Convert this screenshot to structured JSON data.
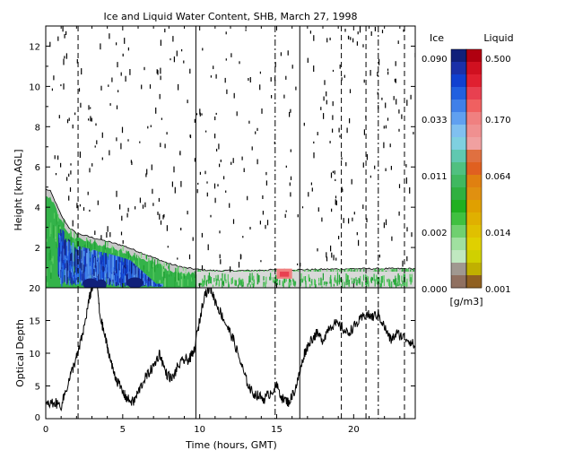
{
  "chart_data": [
    {
      "type": "heatmap",
      "title": "Ice and Liquid Water Content, SHB, March 27, 1998",
      "xlabel": "",
      "ylabel": "Height [km,AGL]",
      "xlim": [
        0,
        24
      ],
      "ylim": [
        0,
        13
      ],
      "xticks": [
        0,
        5,
        10,
        15,
        20
      ],
      "yticks": [
        2,
        4,
        6,
        8,
        10,
        12
      ],
      "cloud_top_km": [
        {
          "t": 0.0,
          "h": 4.9
        },
        {
          "t": 0.3,
          "h": 4.8
        },
        {
          "t": 0.6,
          "h": 4.3
        },
        {
          "t": 1.0,
          "h": 3.6
        },
        {
          "t": 1.5,
          "h": 3.0
        },
        {
          "t": 2.0,
          "h": 2.7
        },
        {
          "t": 3.0,
          "h": 2.5
        },
        {
          "t": 4.0,
          "h": 2.3
        },
        {
          "t": 5.0,
          "h": 2.1
        },
        {
          "t": 6.0,
          "h": 1.8
        },
        {
          "t": 7.0,
          "h": 1.5
        },
        {
          "t": 8.0,
          "h": 1.2
        },
        {
          "t": 9.0,
          "h": 1.0
        },
        {
          "t": 10.0,
          "h": 0.9
        },
        {
          "t": 11.0,
          "h": 0.85
        },
        {
          "t": 13.0,
          "h": 0.85
        },
        {
          "t": 15.0,
          "h": 0.9
        },
        {
          "t": 17.0,
          "h": 0.9
        },
        {
          "t": 20.0,
          "h": 0.95
        },
        {
          "t": 24.0,
          "h": 0.95
        }
      ],
      "vertical_markers": [
        {
          "t": 2.1,
          "style": "dashed"
        },
        {
          "t": 9.75,
          "style": "solid"
        },
        {
          "t": 14.9,
          "style": "dashdot"
        },
        {
          "t": 16.5,
          "style": "solid"
        },
        {
          "t": 19.2,
          "style": "dashed"
        },
        {
          "t": 20.8,
          "style": "dashed"
        },
        {
          "t": 21.6,
          "style": "dashdot"
        },
        {
          "t": 23.3,
          "style": "dashed"
        }
      ]
    },
    {
      "type": "line",
      "xlabel": "Time (hours, GMT)",
      "ylabel": "Optical Depth",
      "xlim": [
        0,
        24
      ],
      "ylim": [
        0,
        20
      ],
      "xticks": [
        0,
        5,
        10,
        15,
        20
      ],
      "yticks": [
        0,
        5,
        10,
        15,
        20
      ],
      "x": [
        0,
        0.5,
        1.0,
        1.4,
        1.8,
        2.1,
        2.5,
        2.8,
        3.0,
        3.3,
        3.5,
        3.8,
        4.0,
        4.3,
        4.6,
        5.0,
        5.3,
        5.7,
        6.0,
        6.4,
        6.7,
        7.0,
        7.4,
        7.8,
        8.2,
        8.6,
        9.0,
        9.3,
        9.6,
        10.0,
        10.3,
        10.7,
        11.0,
        11.4,
        11.8,
        12.2,
        12.6,
        13.0,
        13.4,
        13.8,
        14.2,
        14.6,
        15.0,
        15.4,
        15.8,
        16.2,
        16.5,
        16.8,
        17.2,
        17.6,
        18.0,
        18.4,
        18.8,
        19.2,
        19.6,
        20.0,
        20.4,
        20.8,
        21.2,
        21.6,
        22.0,
        22.4,
        22.8,
        23.2,
        23.6,
        24.0
      ],
      "y": [
        2,
        2.5,
        2,
        5,
        8,
        10,
        14,
        18,
        20,
        22,
        16,
        13,
        11,
        8,
        6,
        4,
        3,
        2.5,
        4,
        6,
        7,
        8,
        10,
        7,
        6,
        8,
        9,
        9,
        10,
        15,
        19,
        20,
        18,
        16,
        14,
        12,
        9,
        6,
        4,
        3.5,
        3,
        4,
        5,
        3,
        2.5,
        4.5,
        7,
        10,
        12,
        13,
        12,
        14,
        14.5,
        14,
        13,
        14,
        15,
        16,
        15.5,
        16,
        14,
        12,
        13,
        12.5,
        12,
        11
      ]
    }
  ],
  "colorbar": {
    "ice_label": "Ice",
    "liquid_label": "Liquid",
    "units": "[g/m3]",
    "ice_ticks": [
      "0.090",
      "0.033",
      "0.011",
      "0.002",
      "0.000"
    ],
    "liquid_ticks": [
      "0.500",
      "0.170",
      "0.064",
      "0.014",
      "0.001"
    ],
    "ice_colors": [
      "#10207a",
      "#1a30a8",
      "#1040d0",
      "#2060e0",
      "#4080e8",
      "#60a0f0",
      "#80c0f0",
      "#7fd0e0",
      "#60c8b0",
      "#50c080",
      "#40b860",
      "#30b040",
      "#20b020",
      "#40c040",
      "#70d070",
      "#a0e0a0",
      "#c0e8c0",
      "#a09890",
      "#907060"
    ],
    "liquid_colors": [
      "#b00010",
      "#d01020",
      "#e02030",
      "#e84050",
      "#f06060",
      "#f08080",
      "#f09090",
      "#f0a0a0",
      "#e07040",
      "#e06020",
      "#e08010",
      "#e09010",
      "#e0a000",
      "#e0b000",
      "#e0c000",
      "#e0d000",
      "#d0d000",
      "#c0b000",
      "#906020"
    ]
  }
}
